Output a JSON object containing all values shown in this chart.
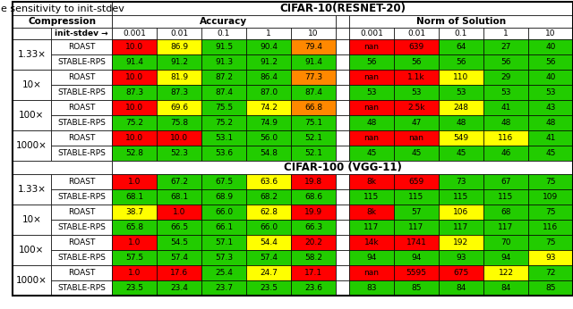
{
  "title_top": "e sensitivity to init-stdev",
  "cifar10_title": "CIFAR-10(RESNET-20)",
  "cifar100_title": "CIFAR-100 (VGG-11)",
  "accuracy_label": "Accuracy",
  "norm_label": "Norm of Solution",
  "compression_label": "Compression",
  "init_stdev_label": "init-stdev →",
  "stdev_vals": [
    "0.001",
    "0.01",
    "0.1",
    "1",
    "10"
  ],
  "compression_vals": [
    "1.33×",
    "10×",
    "100×",
    "1000×"
  ],
  "methods": [
    "ROAST",
    "STABLE-RPS"
  ],
  "cifar10_accuracy": [
    [
      [
        "10.0",
        "86.9",
        "91.5",
        "90.4",
        "79.4"
      ],
      [
        "91.4",
        "91.2",
        "91.3",
        "91.2",
        "91.4"
      ]
    ],
    [
      [
        "10.0",
        "81.9",
        "87.2",
        "86.4",
        "77.3"
      ],
      [
        "87.3",
        "87.3",
        "87.4",
        "87.0",
        "87.4"
      ]
    ],
    [
      [
        "10.0",
        "69.6",
        "75.5",
        "74.2",
        "66.8"
      ],
      [
        "75.2",
        "75.8",
        "75.2",
        "74.9",
        "75.1"
      ]
    ],
    [
      [
        "10.0",
        "10.0",
        "53.1",
        "56.0",
        "52.1"
      ],
      [
        "52.8",
        "52.3",
        "53.6",
        "54.8",
        "52.1"
      ]
    ]
  ],
  "cifar10_norm": [
    [
      [
        "nan",
        "639",
        "64",
        "27",
        "40"
      ],
      [
        "56",
        "56",
        "56",
        "56",
        "56"
      ]
    ],
    [
      [
        "nan",
        "1.1k",
        "110",
        "29",
        "40"
      ],
      [
        "53",
        "53",
        "53",
        "53",
        "53"
      ]
    ],
    [
      [
        "nan",
        "2.5k",
        "248",
        "41",
        "43"
      ],
      [
        "48",
        "47",
        "48",
        "48",
        "48"
      ]
    ],
    [
      [
        "nan",
        "nan",
        "549",
        "116",
        "41"
      ],
      [
        "45",
        "45",
        "45",
        "46",
        "45"
      ]
    ]
  ],
  "cifar100_accuracy": [
    [
      [
        "1.0",
        "67.2",
        "67.5",
        "63.6",
        "19.8"
      ],
      [
        "68.1",
        "68.1",
        "68.9",
        "68.2",
        "68.6"
      ]
    ],
    [
      [
        "38.7",
        "1.0",
        "66.0",
        "62.8",
        "19.9"
      ],
      [
        "65.8",
        "66.5",
        "66.1",
        "66.0",
        "66.3"
      ]
    ],
    [
      [
        "1.0",
        "54.5",
        "57.1",
        "54.4",
        "20.2"
      ],
      [
        "57.5",
        "57.4",
        "57.3",
        "57.4",
        "58.2"
      ]
    ],
    [
      [
        "1.0",
        "17.6",
        "25.4",
        "24.7",
        "17.1"
      ],
      [
        "23.5",
        "23.4",
        "23.7",
        "23.5",
        "23.6"
      ]
    ]
  ],
  "cifar100_norm": [
    [
      [
        "8k",
        "659",
        "73",
        "67",
        "75"
      ],
      [
        "115",
        "115",
        "115",
        "115",
        "109"
      ]
    ],
    [
      [
        "8k",
        "57",
        "106",
        "68",
        "75"
      ],
      [
        "117",
        "117",
        "117",
        "117",
        "116"
      ]
    ],
    [
      [
        "14k",
        "1741",
        "192",
        "70",
        "75"
      ],
      [
        "94",
        "94",
        "93",
        "94",
        "93"
      ]
    ],
    [
      [
        "nan",
        "5595",
        "675",
        "122",
        "72"
      ],
      [
        "83",
        "85",
        "84",
        "84",
        "85"
      ]
    ]
  ],
  "cifar10_accuracy_colors": [
    [
      [
        "red",
        "yellow",
        "green",
        "green",
        "orange"
      ],
      [
        "green",
        "green",
        "green",
        "green",
        "green"
      ]
    ],
    [
      [
        "red",
        "yellow",
        "green",
        "green",
        "orange"
      ],
      [
        "green",
        "green",
        "green",
        "green",
        "green"
      ]
    ],
    [
      [
        "red",
        "yellow",
        "green",
        "yellow",
        "orange"
      ],
      [
        "green",
        "green",
        "green",
        "green",
        "green"
      ]
    ],
    [
      [
        "red",
        "red",
        "green",
        "green",
        "green"
      ],
      [
        "green",
        "green",
        "green",
        "green",
        "green"
      ]
    ]
  ],
  "cifar10_norm_colors": [
    [
      [
        "red",
        "red",
        "green",
        "green",
        "green"
      ],
      [
        "green",
        "green",
        "green",
        "green",
        "green"
      ]
    ],
    [
      [
        "red",
        "red",
        "yellow",
        "green",
        "green"
      ],
      [
        "green",
        "green",
        "green",
        "green",
        "green"
      ]
    ],
    [
      [
        "red",
        "red",
        "yellow",
        "green",
        "green"
      ],
      [
        "green",
        "green",
        "green",
        "green",
        "green"
      ]
    ],
    [
      [
        "red",
        "red",
        "yellow",
        "yellow",
        "green"
      ],
      [
        "green",
        "green",
        "green",
        "green",
        "green"
      ]
    ]
  ],
  "cifar100_accuracy_colors": [
    [
      [
        "red",
        "green",
        "green",
        "yellow",
        "red"
      ],
      [
        "green",
        "green",
        "green",
        "green",
        "green"
      ]
    ],
    [
      [
        "yellow",
        "red",
        "green",
        "yellow",
        "red"
      ],
      [
        "green",
        "green",
        "green",
        "green",
        "green"
      ]
    ],
    [
      [
        "red",
        "green",
        "green",
        "yellow",
        "red"
      ],
      [
        "green",
        "green",
        "green",
        "green",
        "green"
      ]
    ],
    [
      [
        "red",
        "red",
        "green",
        "yellow",
        "red"
      ],
      [
        "green",
        "green",
        "green",
        "green",
        "green"
      ]
    ]
  ],
  "cifar100_norm_colors": [
    [
      [
        "red",
        "red",
        "green",
        "green",
        "green"
      ],
      [
        "green",
        "green",
        "green",
        "green",
        "green"
      ]
    ],
    [
      [
        "red",
        "green",
        "yellow",
        "green",
        "green"
      ],
      [
        "green",
        "green",
        "green",
        "green",
        "green"
      ]
    ],
    [
      [
        "red",
        "red",
        "yellow",
        "green",
        "green"
      ],
      [
        "green",
        "green",
        "green",
        "green",
        "yellow"
      ]
    ],
    [
      [
        "red",
        "red",
        "red",
        "yellow",
        "green"
      ],
      [
        "green",
        "green",
        "green",
        "green",
        "green"
      ]
    ]
  ]
}
